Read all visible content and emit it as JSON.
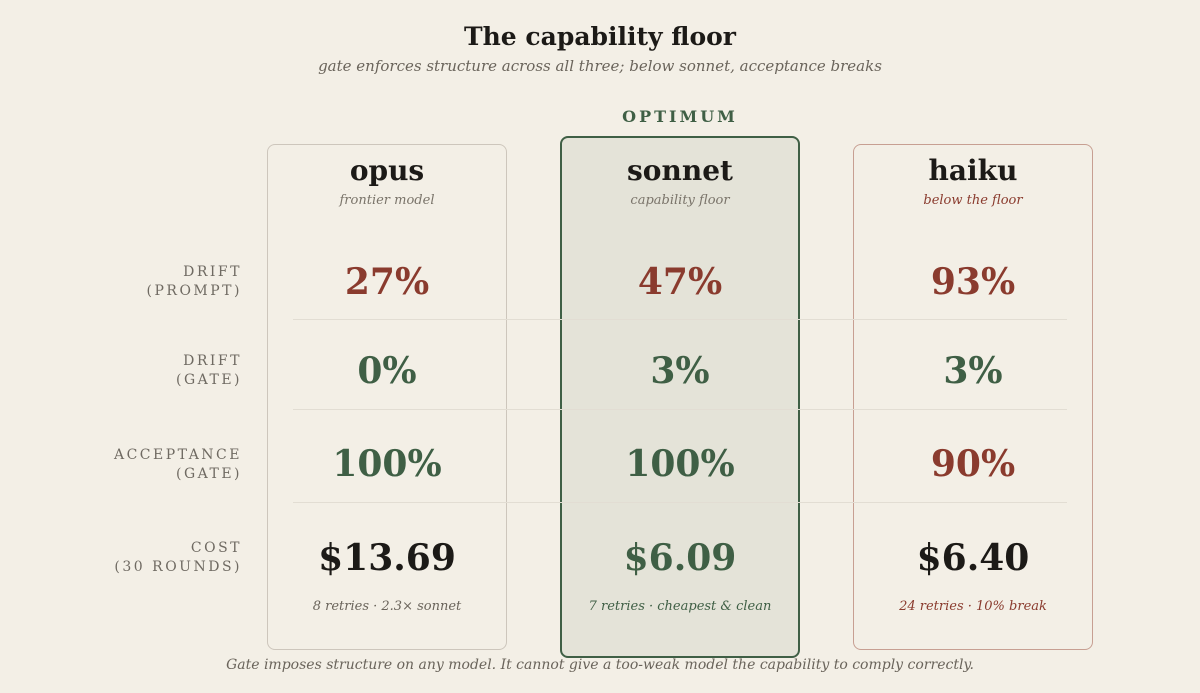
{
  "title": "The capability floor",
  "subtitle": "gate enforces structure across all three; below sonnet, acceptance breaks",
  "highlight_label": "OPTIMUM",
  "footer": "Gate imposes structure on any model. It cannot give a too-weak model the capability to comply correctly.",
  "colors": {
    "bad": "#8a3b2e",
    "good": "#3f5f45",
    "neutral": "#1c1a17",
    "background": "#f3efe6"
  },
  "chart_data": {
    "type": "table",
    "columns": [
      {
        "name": "opus",
        "subtitle": "frontier model"
      },
      {
        "name": "sonnet",
        "subtitle": "capability floor",
        "highlighted": true
      },
      {
        "name": "haiku",
        "subtitle": "below the floor"
      }
    ],
    "rows": [
      {
        "label_line1": "DRIFT",
        "label_line2": "(PROMPT)",
        "values": [
          "27%",
          "47%",
          "93%"
        ],
        "tones": [
          "bad",
          "bad",
          "bad"
        ]
      },
      {
        "label_line1": "DRIFT",
        "label_line2": "(GATE)",
        "values": [
          "0%",
          "3%",
          "3%"
        ],
        "tones": [
          "good",
          "good",
          "good"
        ]
      },
      {
        "label_line1": "ACCEPTANCE",
        "label_line2": "(GATE)",
        "values": [
          "100%",
          "100%",
          "90%"
        ],
        "tones": [
          "good",
          "good",
          "bad"
        ]
      },
      {
        "label_line1": "COST",
        "label_line2": "(30 ROUNDS)",
        "values": [
          "$13.69",
          "$6.09",
          "$6.40"
        ],
        "tones": [
          "neutral",
          "good",
          "neutral"
        ]
      }
    ],
    "notes": [
      "8 retries · 2.3× sonnet",
      "7 retries · cheapest & clean",
      "24 retries · 10% break"
    ]
  }
}
